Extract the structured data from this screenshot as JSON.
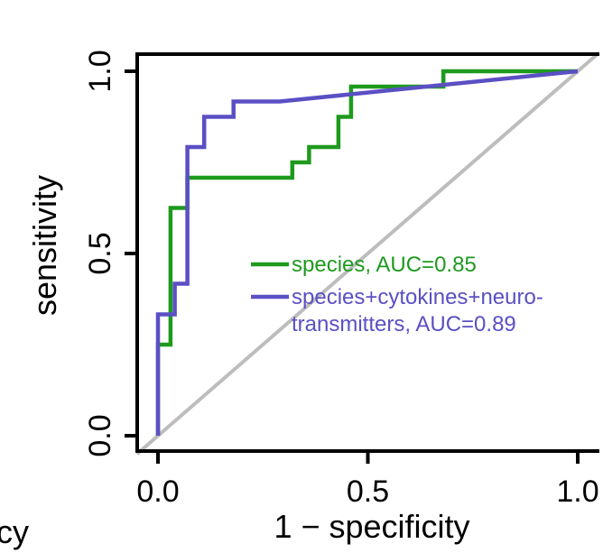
{
  "chart_data": {
    "type": "line",
    "xlabel": "1 − specificity",
    "ylabel": "sensitivity",
    "xlim": [
      0,
      1
    ],
    "ylim": [
      0,
      1
    ],
    "x_ticks": [
      "0.0",
      "0.5",
      "1.0"
    ],
    "y_ticks": [
      "0.0",
      "0.5",
      "1.0"
    ],
    "left_fragment": "cy",
    "diagonal": {
      "color": "#bdbdbd"
    },
    "legend_position": "center-right",
    "series": [
      {
        "name": "species, AUC=0.85",
        "color": "#1e9a1e",
        "x": [
          0,
          0,
          0.03,
          0.03,
          0.07,
          0.07,
          0.32,
          0.32,
          0.36,
          0.36,
          0.43,
          0.43,
          0.46,
          0.46,
          0.68,
          0.68,
          1.0
        ],
        "y": [
          0,
          0.25,
          0.25,
          0.625,
          0.625,
          0.708,
          0.708,
          0.75,
          0.75,
          0.792,
          0.792,
          0.875,
          0.875,
          0.958,
          0.958,
          1.0,
          1.0
        ]
      },
      {
        "name": "species+cytokines+neuro-\ntransmitters, AUC=0.89",
        "color": "#5b4fc4",
        "x": [
          0,
          0,
          0.04,
          0.04,
          0.07,
          0.07,
          0.11,
          0.11,
          0.18,
          0.18,
          0.29,
          1.0
        ],
        "y": [
          0,
          0.333,
          0.333,
          0.417,
          0.417,
          0.792,
          0.792,
          0.875,
          0.875,
          0.917,
          0.917,
          1.0
        ]
      }
    ]
  }
}
